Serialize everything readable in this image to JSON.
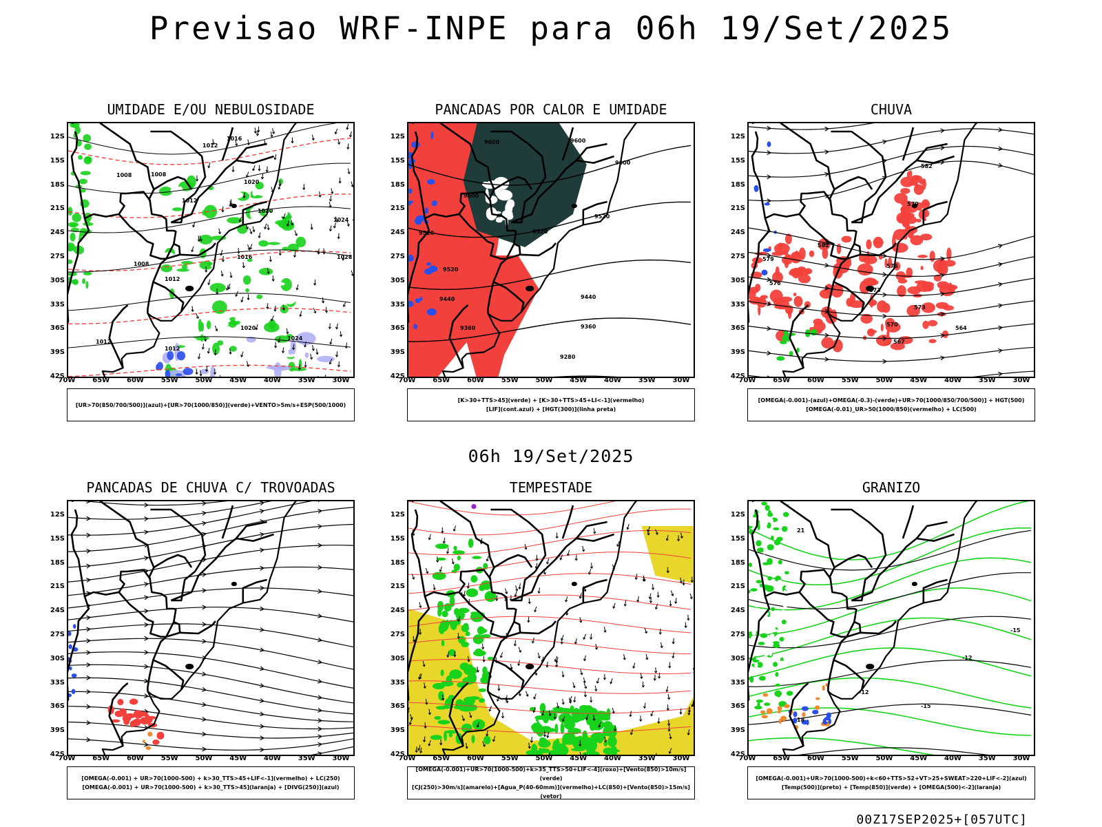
{
  "page": {
    "title": "Previsao WRF-INPE  para 06h 19/Set/2025",
    "middle_title": "06h 19/Set/2025",
    "footer": "00Z17SEP2025+[057UTC]"
  },
  "axes": {
    "lat_labels": [
      "12S",
      "15S",
      "18S",
      "21S",
      "24S",
      "27S",
      "30S",
      "33S",
      "36S",
      "39S",
      "42S"
    ],
    "lon_labels": [
      "70W",
      "65W",
      "60W",
      "55W",
      "50W",
      "45W",
      "40W",
      "35W",
      "30W"
    ]
  },
  "colors": {
    "red": "#f2413c",
    "green": "#18d21c",
    "blue": "#2a4ee8",
    "lavender": "#b0b0f4",
    "darkteal": "#1f3b3a",
    "yellow": "#e8d62a",
    "orange": "#f08a2a",
    "purple": "#9b20c8"
  },
  "panels": [
    {
      "id": "umidade",
      "title": "UMIDADE E/OU NEBULOSIDADE",
      "legend": [
        "[UR>70(850/700/500)](azul)+[UR>70(1000/850)](verde)+VENTO>5m/s+ESP(500/1000)"
      ],
      "contour_labels": [
        "1016",
        "1012",
        "1008",
        "1008",
        "1020",
        "1012",
        "1020",
        "1024",
        "1016",
        "1028",
        "1008",
        "1012",
        "1020",
        "1024",
        "1012",
        "1012"
      ]
    },
    {
      "id": "pancadas_calor",
      "title": "PANCADAS POR CALOR E UMIDADE",
      "legend": [
        "[K>30+TTS>45](verde) + [K>30+TTS>45+LI<-1](vermelho)",
        "[LIF](cont.azul) + [HGT(300)](linha preta)"
      ],
      "contour_labels": [
        "9600",
        "9600",
        "9600",
        "9600",
        "9520",
        "9520",
        "9520",
        "9520",
        "9440",
        "9440",
        "9360",
        "9360",
        "9280"
      ]
    },
    {
      "id": "chuva",
      "title": "CHUVA",
      "legend": [
        "[OMEGA(-0.001)-(azul)+OMEGA(-0.3)-(verde)+UR>70(1000/850/700/500)] + HGT(500)",
        "[OMEGA(-0.01)_UR>50(1000/850)(vermelho) + LC(500)"
      ],
      "contour_labels": [
        "582",
        "579",
        "576",
        "573",
        "570",
        "567",
        "564",
        "582",
        "579",
        "576",
        "573"
      ]
    },
    {
      "id": "pancadas_trovoadas",
      "title": "PANCADAS DE CHUVA C/ TROVOADAS",
      "legend": [
        "[OMEGA(-0.001) + UR>70(1000-500) + k>30_TTS>45+LIF<-1](vermelho) + LC(250)",
        "[OMEGA(-0.001) + UR>70(1000-500) + k>30_TTS>45](laranja) + [DIVG(250)](azul)"
      ],
      "contour_labels": []
    },
    {
      "id": "tempestade",
      "title": "TEMPESTADE",
      "legend": [
        "[OMEGA(-0.001)+UR>70(1000-500)+k>35_TTS>50+LIF<-4](roxo)+[Vento(850)>10m/s](verde)",
        "[CJ(250)>30m/s](amarelo)+[Agua_P(40-60mm)](vermelho)+LC(850)+[Vento(850)>15m/s](vetor)"
      ],
      "contour_labels": []
    },
    {
      "id": "granizo",
      "title": "GRANIZO",
      "legend": [
        "[OMEGA(-0.001)+UR>70(1000-500)+k<60+TTS>52+VT>25+SWEAT>220+LIF<-2](azul)",
        "[Temp(500)](preto) + [Temp(850)](verde) + [OMEGA(500)<-2](laranja)"
      ],
      "contour_labels": [
        "-12",
        "-12",
        "-15",
        "-15",
        "18",
        "21"
      ]
    }
  ]
}
